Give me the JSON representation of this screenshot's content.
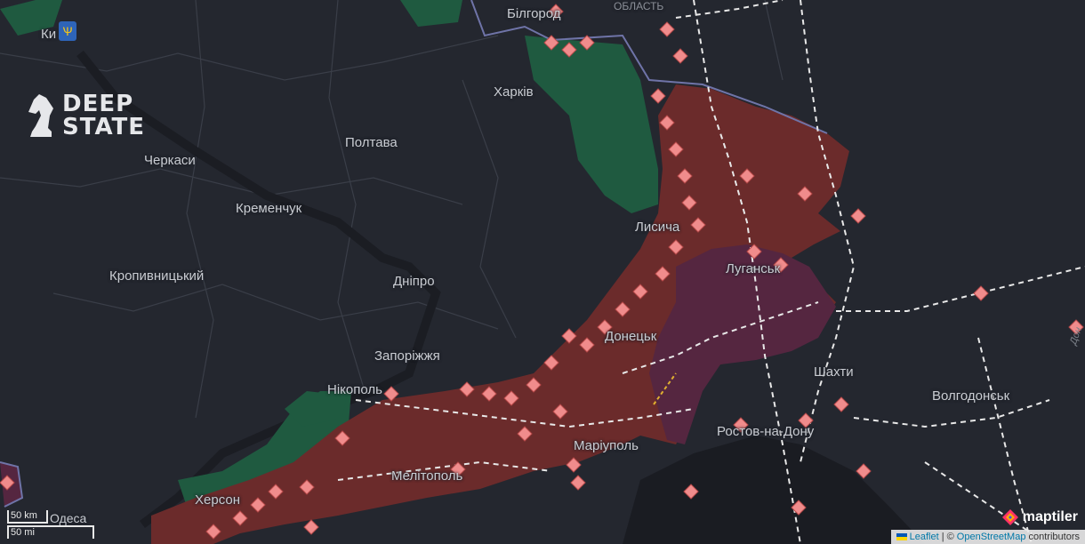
{
  "logo": {
    "line1": "DEEP",
    "line2": "STATE"
  },
  "cities": {
    "kyiv": "Ки",
    "bilgorod": "Білгород",
    "oblast": "ОБЛАСТЬ",
    "kharkiv": "Харків",
    "poltava": "Полтава",
    "cherkasy": "Черкаси",
    "kremenchuk": "Кременчук",
    "kropyvnytskyi": "Кропивницький",
    "dnipro": "Дніпро",
    "zaporizhzhia": "Запоріжжя",
    "nikopol": "Нікополь",
    "lysychansk": "Лисича",
    "luhansk": "Луганськ",
    "donetsk": "Донецьк",
    "mariupol": "Маріуполь",
    "melitopol": "Мелітополь",
    "kherson": "Херсон",
    "odesa": "Одеса",
    "shakhty": "Шахти",
    "volgodonsk": "Волгодонськ",
    "rostov": "Ростов-на-Дону",
    "don": "Дон"
  },
  "scale": {
    "km": "50 km",
    "mi": "50 mi"
  },
  "attribution": {
    "leaflet": "Leaflet",
    "sep": "| ©",
    "osm": "OpenStreetMap",
    "contrib": "contributors"
  },
  "maptiler": "maptiler",
  "colors": {
    "occupied": "#6b2b2b",
    "occupied_pre2022": "#552640",
    "liberated": "#1f5a40",
    "marker": "#f08c8c"
  },
  "icons": [
    "trident-icon",
    "knight-icon",
    "maptiler-logo-icon",
    "ukraine-flag-icon",
    "combat-marker-icon"
  ]
}
